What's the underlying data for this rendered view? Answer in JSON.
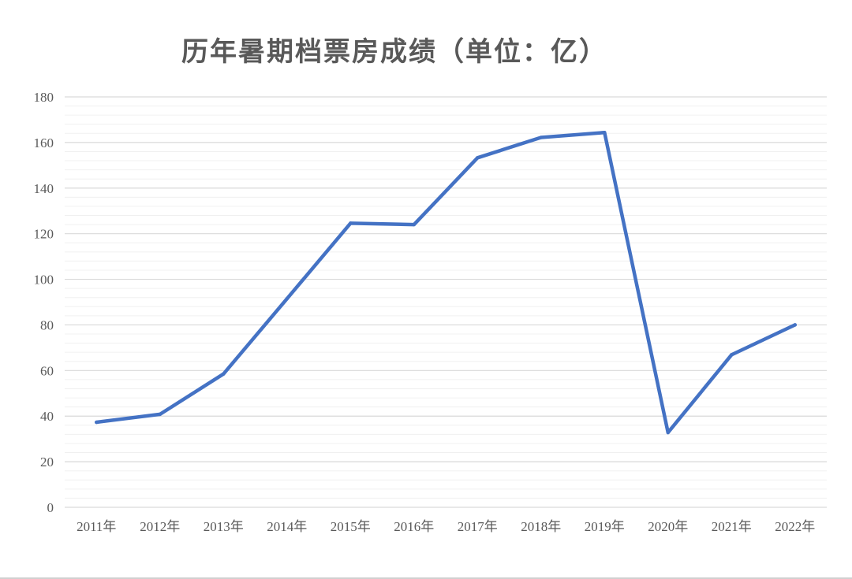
{
  "chart_data": {
    "type": "line",
    "title": "历年暑期档票房成绩（单位：亿）",
    "xlabel": "",
    "ylabel": "",
    "categories": [
      "2011年",
      "2012年",
      "2013年",
      "2014年",
      "2015年",
      "2016年",
      "2017年",
      "2018年",
      "2019年",
      "2020年",
      "2021年",
      "2022年"
    ],
    "series": [
      {
        "values": [
          37.3,
          40.8,
          58.5,
          91.5,
          124.6,
          124.0,
          153.3,
          162.2,
          164.4,
          32.8,
          66.9,
          80.0
        ],
        "color": "#4472C4"
      }
    ],
    "ylim": [
      0,
      180
    ],
    "yticks": [
      0,
      20,
      40,
      60,
      80,
      100,
      120,
      140,
      160,
      180
    ],
    "grid": true,
    "legend": "none"
  }
}
